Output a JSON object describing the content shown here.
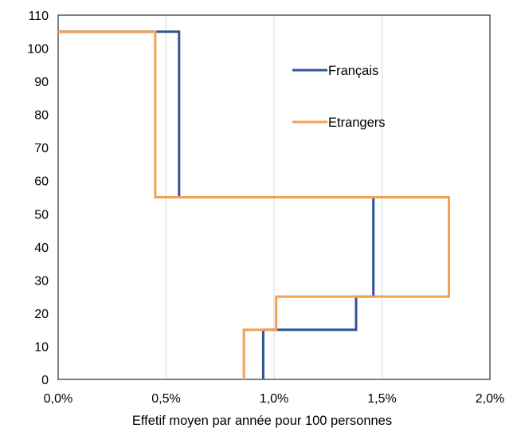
{
  "chart_data": {
    "type": "line",
    "title": "",
    "xlabel": "Effetif moyen par année pour 100 personnes",
    "ylabel": "",
    "xlim": [
      0,
      0.02
    ],
    "ylim": [
      0,
      110
    ],
    "x_tick_values": [
      0,
      0.005,
      0.01,
      0.015,
      0.02
    ],
    "x_tick_labels": [
      "0,0%",
      "0,5%",
      "1,0%",
      "1,5%",
      "2,0%"
    ],
    "y_tick_values": [
      0,
      10,
      20,
      30,
      40,
      50,
      60,
      70,
      80,
      90,
      100,
      110
    ],
    "y_tick_labels": [
      "0",
      "10",
      "20",
      "30",
      "40",
      "50",
      "60",
      "70",
      "80",
      "90",
      "100",
      "110"
    ],
    "grid": "vertical",
    "legend_position": "inside-top-right",
    "series": [
      {
        "name": "Français",
        "color": "#2f5597",
        "points": [
          [
            0.0095,
            0
          ],
          [
            0.0095,
            15
          ],
          [
            0.0138,
            15
          ],
          [
            0.0138,
            25
          ],
          [
            0.0146,
            25
          ],
          [
            0.0146,
            55
          ],
          [
            0.0056,
            55
          ],
          [
            0.0056,
            105
          ],
          [
            0,
            105
          ]
        ]
      },
      {
        "name": "Etrangers",
        "color": "#f4a052",
        "points": [
          [
            0.0086,
            0
          ],
          [
            0.0086,
            15
          ],
          [
            0.0101,
            15
          ],
          [
            0.0101,
            25
          ],
          [
            0.0181,
            25
          ],
          [
            0.0181,
            55
          ],
          [
            0.0045,
            55
          ],
          [
            0.0045,
            105
          ],
          [
            0,
            105
          ]
        ]
      }
    ]
  }
}
